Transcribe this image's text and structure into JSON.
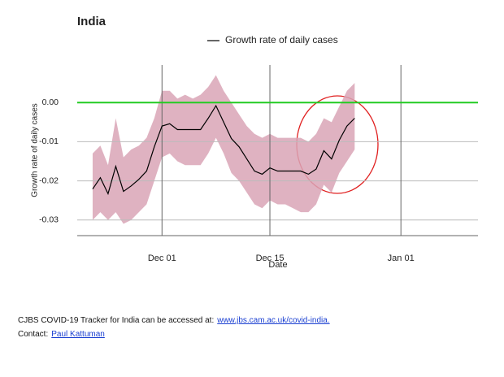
{
  "chart_data": {
    "type": "line",
    "title": "India",
    "ylabel": "Growth rate of daily cases",
    "xlabel": "Date",
    "x": [
      "Nov 22",
      "Nov 23",
      "Nov 24",
      "Nov 25",
      "Nov 26",
      "Nov 27",
      "Nov 28",
      "Nov 29",
      "Nov 30",
      "Dec 01",
      "Dec 02",
      "Dec 03",
      "Dec 04",
      "Dec 05",
      "Dec 06",
      "Dec 07",
      "Dec 08",
      "Dec 09",
      "Dec 10",
      "Dec 11",
      "Dec 12",
      "Dec 13",
      "Dec 14",
      "Dec 15",
      "Dec 16",
      "Dec 17",
      "Dec 18",
      "Dec 19",
      "Dec 20",
      "Dec 21",
      "Dec 22",
      "Dec 23",
      "Dec 24",
      "Dec 25",
      "Dec 26"
    ],
    "series": [
      {
        "name": "Growth rate of daily cases",
        "color": "#000000",
        "values": [
          -0.0221,
          -0.0192,
          -0.0233,
          -0.0163,
          -0.0227,
          -0.0213,
          -0.0196,
          -0.0175,
          -0.0113,
          -0.006,
          -0.0054,
          -0.0069,
          -0.0069,
          -0.0069,
          -0.0069,
          -0.004,
          -0.0008,
          -0.005,
          -0.0092,
          -0.0113,
          -0.0144,
          -0.0175,
          -0.0183,
          -0.0167,
          -0.0175,
          -0.0175,
          -0.0175,
          -0.0175,
          -0.0183,
          -0.017,
          -0.0123,
          -0.0144,
          -0.0096,
          -0.006,
          -0.004
        ]
      }
    ],
    "band": {
      "color": "#d9a5b6",
      "upper": [
        -0.013,
        -0.011,
        -0.016,
        -0.004,
        -0.014,
        -0.012,
        -0.011,
        -0.009,
        -0.004,
        0.003,
        0.003,
        0.001,
        0.002,
        0.001,
        0.002,
        0.004,
        0.007,
        0.003,
        0.0,
        -0.003,
        -0.006,
        -0.008,
        -0.009,
        -0.008,
        -0.009,
        -0.009,
        -0.009,
        -0.009,
        -0.01,
        -0.008,
        -0.004,
        -0.005,
        -0.001,
        0.003,
        0.005
      ],
      "lower": [
        -0.03,
        -0.028,
        -0.03,
        -0.028,
        -0.031,
        -0.03,
        -0.028,
        -0.026,
        -0.02,
        -0.014,
        -0.013,
        -0.015,
        -0.016,
        -0.016,
        -0.016,
        -0.013,
        -0.009,
        -0.013,
        -0.018,
        -0.02,
        -0.023,
        -0.026,
        -0.027,
        -0.025,
        -0.026,
        -0.026,
        -0.027,
        -0.028,
        -0.028,
        -0.026,
        -0.021,
        -0.023,
        -0.018,
        -0.015,
        -0.012
      ]
    },
    "hline": {
      "value": 0,
      "color": "#22cc22"
    },
    "xlim": [
      "Nov 20",
      "Jan 11"
    ],
    "xticks": [
      "Dec 01",
      "Dec 15",
      "Jan 01"
    ],
    "ylim": [
      -0.034,
      0.0096
    ],
    "yticks": [
      {
        "value": 0,
        "label": "0.00"
      },
      -0.01,
      -0.02,
      -0.03
    ],
    "grid": true
  },
  "footer": {
    "text": "CJBS COVID-19 Tracker for India can be accessed at:",
    "link": "www.jbs.cam.ac.uk/covid-india.",
    "contact_label": "Contact:",
    "contact_link": "Paul Kattuman"
  }
}
